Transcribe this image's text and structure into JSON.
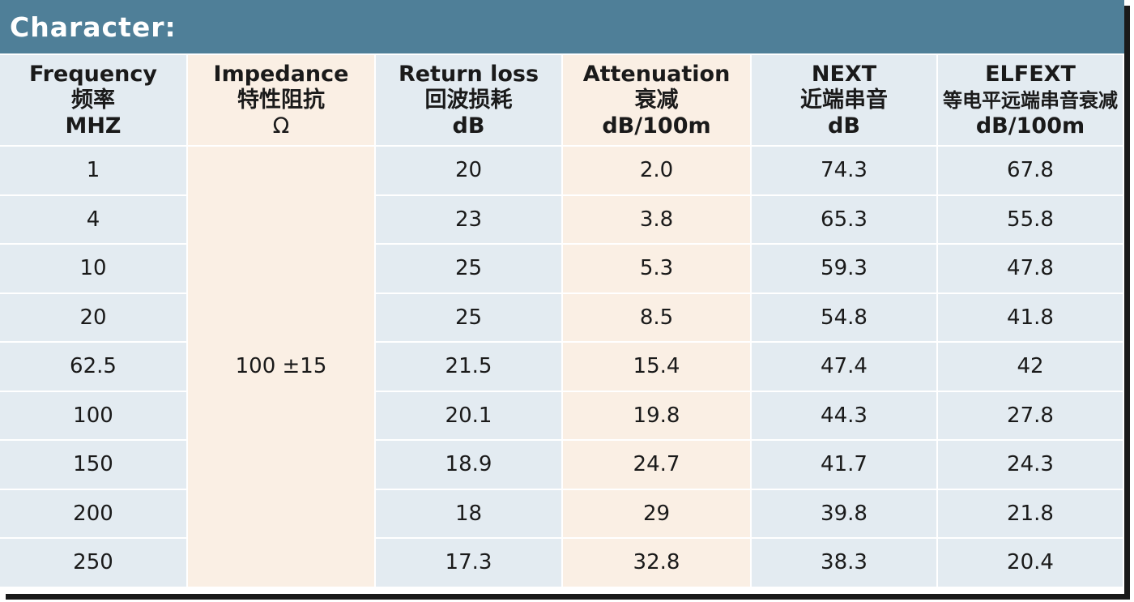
{
  "title": "Character:",
  "headers": [
    {
      "en": "Frequency",
      "cn": "频率",
      "unit": "MHZ"
    },
    {
      "en": "Impedance",
      "cn": "特性阻抗",
      "unit": "Ω"
    },
    {
      "en": "Return loss",
      "cn": "回波损耗",
      "unit": "dB"
    },
    {
      "en": "Attenuation",
      "cn": "衰减",
      "unit": "dB/100m"
    },
    {
      "en": "NEXT",
      "cn": "近端串音",
      "unit": "dB"
    },
    {
      "en": "ELFEXT",
      "cn": "等电平远端串音衰减",
      "unit": "dB/100m"
    }
  ],
  "impedance_value": "100 ±15",
  "rows": [
    {
      "frequency": "1",
      "return_loss": "20",
      "attenuation": "2.0",
      "next": "74.3",
      "elfext": "67.8"
    },
    {
      "frequency": "4",
      "return_loss": "23",
      "attenuation": "3.8",
      "next": "65.3",
      "elfext": "55.8"
    },
    {
      "frequency": "10",
      "return_loss": "25",
      "attenuation": "5.3",
      "next": "59.3",
      "elfext": "47.8"
    },
    {
      "frequency": "20",
      "return_loss": "25",
      "attenuation": "8.5",
      "next": "54.8",
      "elfext": "41.8"
    },
    {
      "frequency": "62.5",
      "return_loss": "21.5",
      "attenuation": "15.4",
      "next": "47.4",
      "elfext": "42"
    },
    {
      "frequency": "100",
      "return_loss": "20.1",
      "attenuation": "19.8",
      "next": "44.3",
      "elfext": "27.8"
    },
    {
      "frequency": "150",
      "return_loss": "18.9",
      "attenuation": "24.7",
      "next": "41.7",
      "elfext": "24.3"
    },
    {
      "frequency": "200",
      "return_loss": "18",
      "attenuation": "29",
      "next": "39.8",
      "elfext": "21.8"
    },
    {
      "frequency": "250",
      "return_loss": "17.3",
      "attenuation": "32.8",
      "next": "38.3",
      "elfext": "20.4"
    }
  ]
}
